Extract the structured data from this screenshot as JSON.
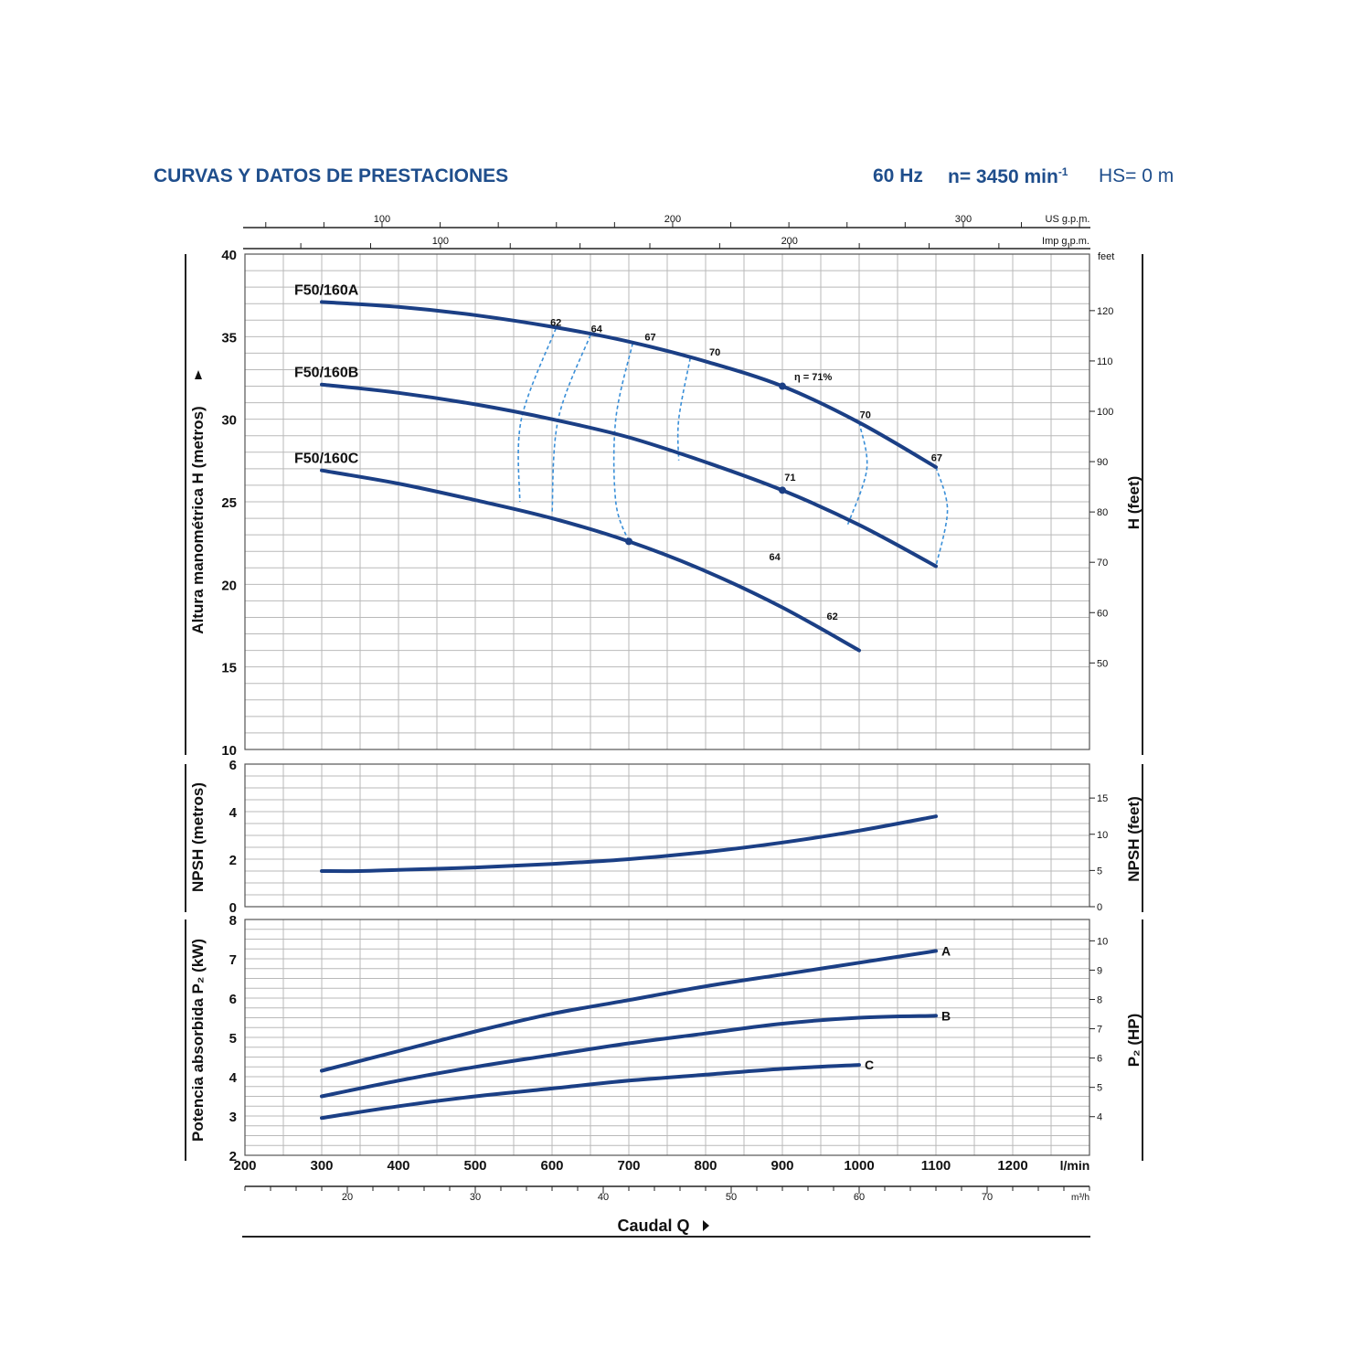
{
  "header": {
    "title": "CURVAS Y DATOS DE PRESTACIONES",
    "freq": "60 Hz",
    "speed_prefix": "n= 3450 min",
    "speed_sup": "-1",
    "hs": "HS= 0 m"
  },
  "colors": {
    "curve": "#1b3f85",
    "efficiency": "#3a8fd8",
    "grid": "#b9b9b9",
    "text": "#111111",
    "header": "#1f4e8c"
  },
  "chart_data": {
    "type": "line",
    "x_axis": {
      "label": "Caudal Q",
      "unit": "l/min",
      "range": [
        200,
        1300
      ],
      "ticks": [
        200,
        300,
        400,
        500,
        600,
        700,
        800,
        900,
        1000,
        1100,
        1200
      ],
      "secondary_m3h": {
        "unit": "m³/h",
        "ticks": [
          20,
          30,
          40,
          50,
          60,
          70
        ]
      },
      "secondary_usgpm": {
        "unit": "US g.p.m.",
        "ticks": [
          100,
          200,
          300
        ]
      },
      "secondary_impgpm": {
        "unit": "Imp g.p.m.",
        "ticks": [
          100,
          200
        ]
      }
    },
    "head": {
      "ylabel": "Altura manométrica H (metros)",
      "ylabel_right": "H (feet)",
      "ylim": [
        10,
        40
      ],
      "yticks": [
        10,
        15,
        20,
        25,
        30,
        35,
        40
      ],
      "right_unit": "feet",
      "right_ticks": [
        50,
        60,
        70,
        80,
        90,
        100,
        110,
        120
      ],
      "series": [
        {
          "name": "F50/160A",
          "x": [
            300,
            400,
            500,
            600,
            700,
            800,
            900,
            1000,
            1100
          ],
          "y": [
            37.1,
            36.8,
            36.3,
            35.6,
            34.7,
            33.5,
            32.0,
            29.8,
            27.1
          ]
        },
        {
          "name": "F50/160B",
          "x": [
            300,
            400,
            500,
            600,
            700,
            800,
            900,
            1000,
            1100
          ],
          "y": [
            32.1,
            31.6,
            30.9,
            30.0,
            28.9,
            27.4,
            25.7,
            23.6,
            21.1
          ]
        },
        {
          "name": "F50/160C",
          "x": [
            300,
            400,
            500,
            600,
            700,
            800,
            900,
            1000
          ],
          "y": [
            26.9,
            26.1,
            25.1,
            24.0,
            22.6,
            20.8,
            18.6,
            16.0
          ]
        }
      ],
      "efficiency": [
        {
          "label": "62",
          "points": [
            [
              605,
              35.5
            ],
            [
              560,
              30.0
            ],
            [
              558,
              25.0
            ]
          ]
        },
        {
          "label": "64",
          "points": [
            [
              650,
              35.1
            ],
            [
              608,
              30.0
            ],
            [
              600,
              24.3
            ]
          ]
        },
        {
          "label": "67",
          "points": [
            [
              705,
              34.6
            ],
            [
              683,
              30.0
            ],
            [
              683,
              25.0
            ],
            [
              700,
              22.6
            ]
          ]
        },
        {
          "label": "70",
          "points": [
            [
              780,
              33.7
            ],
            [
              765,
              30.0
            ],
            [
              765,
              27.5
            ]
          ]
        },
        {
          "label": "70",
          "points": [
            [
              1000,
              29.8
            ],
            [
              1010,
              27.0
            ],
            [
              985,
              23.6
            ]
          ]
        },
        {
          "label": "67",
          "points": [
            [
              1100,
              27.1
            ],
            [
              1115,
              24.5
            ],
            [
              1100,
              21.1
            ]
          ]
        }
      ],
      "efficiency_labels": [
        {
          "text": "62",
          "x": 605,
          "y": 35.5
        },
        {
          "text": "64",
          "x": 658,
          "y": 35.1
        },
        {
          "text": "67",
          "x": 728,
          "y": 34.6
        },
        {
          "text": "70",
          "x": 812,
          "y": 33.7
        },
        {
          "text": "η = 71%",
          "x": 940,
          "y": 32.2
        },
        {
          "text": "70",
          "x": 1008,
          "y": 29.9
        },
        {
          "text": "67",
          "x": 1101,
          "y": 27.3
        },
        {
          "text": "71",
          "x": 910,
          "y": 26.1
        },
        {
          "text": "64",
          "x": 890,
          "y": 21.3
        },
        {
          "text": "62",
          "x": 965,
          "y": 17.7
        }
      ],
      "bep_markers": [
        [
          900,
          32.0
        ],
        [
          900,
          25.7
        ],
        [
          700,
          22.6
        ]
      ]
    },
    "npsh": {
      "ylabel": "NPSH (metros)",
      "ylabel_right": "NPSH (feet)",
      "ylim": [
        0,
        6
      ],
      "yticks": [
        0,
        2,
        4,
        6
      ],
      "right_ticks": [
        0,
        5,
        10,
        15
      ],
      "series": [
        {
          "name": "",
          "x": [
            300,
            350,
            400,
            500,
            600,
            700,
            800,
            900,
            1000,
            1100
          ],
          "y": [
            1.5,
            1.5,
            1.55,
            1.65,
            1.8,
            2.0,
            2.3,
            2.7,
            3.2,
            3.8
          ]
        }
      ]
    },
    "power": {
      "ylabel": "Potencia absorbida P₂ (kW)",
      "ylabel_right": "P₂ (HP)",
      "ylim": [
        2,
        8
      ],
      "yticks": [
        2,
        3,
        4,
        5,
        6,
        7,
        8
      ],
      "right_ticks": [
        4,
        5,
        6,
        7,
        8,
        9,
        10
      ],
      "series": [
        {
          "name": "A",
          "x": [
            300,
            400,
            500,
            600,
            700,
            800,
            900,
            1000,
            1100
          ],
          "y": [
            4.15,
            4.65,
            5.15,
            5.6,
            5.95,
            6.3,
            6.6,
            6.9,
            7.2
          ]
        },
        {
          "name": "B",
          "x": [
            300,
            400,
            500,
            600,
            700,
            800,
            900,
            1000,
            1100
          ],
          "y": [
            3.5,
            3.9,
            4.25,
            4.55,
            4.85,
            5.1,
            5.35,
            5.5,
            5.55
          ]
        },
        {
          "name": "C",
          "x": [
            300,
            400,
            500,
            600,
            700,
            800,
            900,
            1000
          ],
          "y": [
            2.95,
            3.25,
            3.5,
            3.7,
            3.9,
            4.05,
            4.2,
            4.3
          ]
        }
      ]
    }
  }
}
